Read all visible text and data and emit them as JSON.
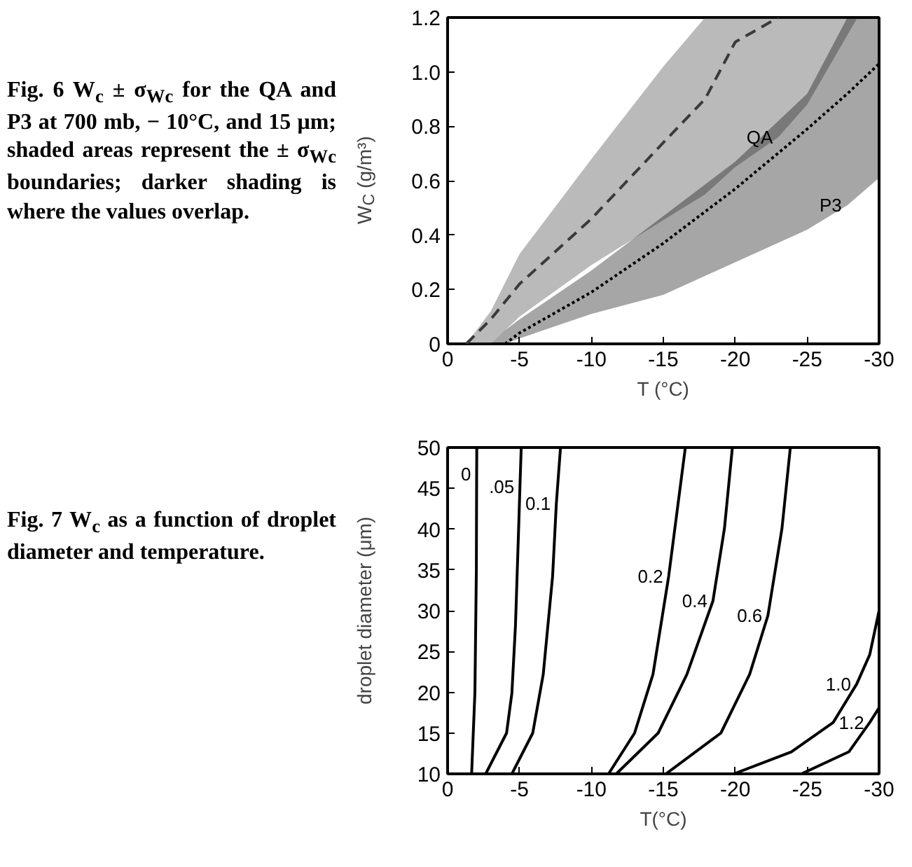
{
  "chart_data": [
    {
      "type": "line",
      "title": "Fig. 6 W$_{c}$ ± σ$_{Wc}$ for the QA and P3 at 700 mb, − 10°C, and 15 μm; shaded areas represent the ± σ$_{Wc}$ boundaries; darker shading is where the values overlap.",
      "xlabel": "T (°C)",
      "ylabel": "W$_{C}$ (g/m³)",
      "xlim": [
        0,
        -30
      ],
      "ylim": [
        0,
        1.2
      ],
      "xticks": [
        0,
        -5,
        -10,
        -15,
        -20,
        -25,
        -30
      ],
      "yticks": [
        0,
        0.2,
        0.4,
        0.6,
        0.8,
        {
          "value": 1,
          "label": "1.0"
        },
        1.2
      ],
      "grid": false,
      "marker": "none",
      "series": [
        {
          "color": "#3a3a3a",
          "line_style": "dashed",
          "x": [
            -1.3,
            -3,
            -5,
            -10,
            -15,
            -17.9,
            -20,
            -23,
            -25,
            -28.5,
            -30
          ],
          "values": [
            0,
            0.09,
            0.22,
            0.46,
            0.74,
            0.9,
            1.11,
            1.2,
            null,
            null,
            null
          ],
          "lower": [
            0,
            0,
            0.1,
            0.29,
            0.455,
            0.55,
            0.65,
            0.76,
            0.88,
            1.2,
            1.2
          ],
          "upper": [
            0,
            0.12,
            0.33,
            0.68,
            1.02,
            1.2,
            1.2,
            1.2,
            1.2,
            1.2,
            1.2
          ]
        },
        {
          "color": "#000000",
          "line_style": "dotted",
          "x": [
            -3,
            -4,
            -5,
            -10,
            -15,
            -20,
            -25,
            -27.8,
            -30
          ],
          "values": [
            null,
            0,
            0.04,
            0.19,
            0.37,
            0.57,
            0.79,
            0.92,
            1.03
          ],
          "lower": [
            0,
            0,
            0.02,
            0.11,
            0.18,
            0.3,
            0.42,
            0.51,
            0.61
          ],
          "upper": [
            0,
            0.05,
            0.09,
            0.27,
            0.47,
            0.67,
            0.92,
            1.2,
            1.2
          ]
        }
      ],
      "annotations": [
        {
          "text": "QA",
          "x": -23,
          "y": 0.76
        },
        {
          "text": "P3",
          "x": -27.8,
          "y": 0.51
        }
      ]
    },
    {
      "type": "line",
      "title": "Fig. 7 W$_{c}$ as a function of droplet diameter and temperature.",
      "xlabel": "T(°C)",
      "ylabel": "droplet diameter (μm)",
      "xlim": [
        0,
        -30
      ],
      "ylim": [
        10,
        50
      ],
      "xticks": [
        0,
        -5,
        -10,
        -15,
        -20,
        -25,
        -30
      ],
      "yticks": [
        10,
        15,
        20,
        25,
        30,
        35,
        40,
        45,
        50
      ],
      "grid": false,
      "marker": "none",
      "line_style": "solid",
      "series": [
        {
          "color": "#000000",
          "x": [
            -1.67,
            -1.9,
            -2.0,
            -2.02,
            -2.03
          ],
          "values": [
            10,
            20,
            35,
            46.7,
            50
          ]
        },
        {
          "color": "#000000",
          "x": [
            -2.65,
            -4.1,
            -4.47,
            -4.72,
            -4.94,
            -5.03,
            -5.12
          ],
          "values": [
            10,
            15,
            19.9,
            28.2,
            40.1,
            45.2,
            50
          ]
        },
        {
          "color": "#000000",
          "x": [
            -4.47,
            -5.92,
            -6.65,
            -7.3,
            -7.56,
            -7.85
          ],
          "values": [
            10,
            15,
            22.2,
            34.2,
            43.1,
            50
          ]
        },
        {
          "color": "#000000",
          "x": [
            -11.19,
            -13.0,
            -14.28,
            -15.37,
            -16.53
          ],
          "values": [
            10,
            15,
            22.2,
            34.2,
            50
          ]
        },
        {
          "color": "#000000",
          "x": [
            -11.73,
            -14.64,
            -16.64,
            -18.45,
            -19.25,
            -19.8
          ],
          "values": [
            10,
            15,
            22.2,
            31.2,
            40.1,
            50
          ]
        },
        {
          "color": "#000000",
          "x": [
            -15.18,
            -19.0,
            -21.0,
            -22.27,
            -23.25,
            -23.83
          ],
          "values": [
            10,
            15,
            22.2,
            29.4,
            40.1,
            50
          ]
        },
        {
          "color": "#000000",
          "x": [
            -19.9,
            -23.9,
            -26.81,
            -28.44,
            -29.35,
            -30
          ],
          "values": [
            10,
            12.7,
            16.3,
            21.0,
            24.6,
            30.0
          ]
        },
        {
          "color": "#000000",
          "x": [
            -24.6,
            -27.9,
            -29.35,
            -30
          ],
          "values": [
            10,
            12.7,
            16.3,
            18.1
          ]
        }
      ],
      "annotations": [
        {
          "text": "0",
          "x": -2.02,
          "y": 46.7
        },
        {
          "text": ".05",
          "x": -5.03,
          "y": 45.2
        },
        {
          "text": "0.1",
          "x": -7.56,
          "y": 43.1
        },
        {
          "text": "0.2",
          "x": -15.37,
          "y": 34.2
        },
        {
          "text": "0.4",
          "x": -18.45,
          "y": 31.2
        },
        {
          "text": "0.6",
          "x": -22.27,
          "y": 29.4
        },
        {
          "text": "1.0",
          "x": -28.44,
          "y": 21.0
        },
        {
          "text": "1.2",
          "x": -29.35,
          "y": 16.3
        }
      ]
    }
  ]
}
